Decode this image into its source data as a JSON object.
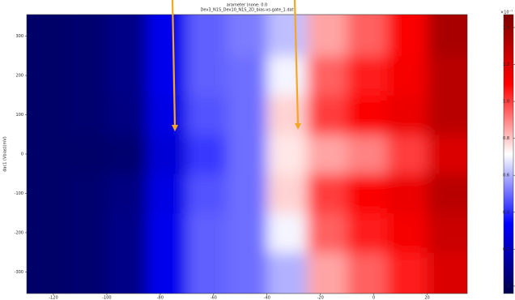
{
  "chart_data": {
    "type": "heatmap",
    "title": "arameter (none: 0.0",
    "subtitle": "Dev3_N1S_Dev10_N1S_2D_bias-vs-gate_1.dat",
    "y_label": "dac1 (Vbias)(mV)",
    "xlim": [
      -130,
      35
    ],
    "ylim": [
      -355,
      355
    ],
    "xticks": [
      -120,
      -100,
      -80,
      -60,
      -40,
      -20,
      0,
      20
    ],
    "yticks": [
      300,
      200,
      100,
      0,
      -100,
      -200,
      -300
    ],
    "x_edges": [
      -130,
      -115,
      -100,
      -85,
      -70,
      -55,
      -40,
      -25,
      -10,
      5,
      20,
      35
    ],
    "y_edges": [
      -355,
      -250,
      -150,
      -50,
      50,
      150,
      250,
      355
    ],
    "z": [
      [
        0.02,
        0.03,
        0.08,
        0.3,
        0.48,
        0.5,
        0.6,
        0.85,
        0.95,
        1.05,
        1.2
      ],
      [
        0.02,
        0.03,
        0.08,
        0.3,
        0.48,
        0.5,
        0.7,
        0.95,
        1.05,
        1.12,
        1.25
      ],
      [
        0.02,
        0.03,
        0.07,
        0.28,
        0.46,
        0.5,
        0.78,
        1.0,
        1.1,
        1.15,
        1.3
      ],
      [
        0.02,
        0.02,
        0.03,
        0.25,
        0.42,
        0.5,
        0.75,
        0.85,
        0.9,
        1.0,
        1.2
      ],
      [
        0.02,
        0.03,
        0.07,
        0.28,
        0.46,
        0.5,
        0.78,
        1.0,
        1.1,
        1.15,
        1.3
      ],
      [
        0.02,
        0.03,
        0.08,
        0.3,
        0.48,
        0.5,
        0.7,
        0.95,
        1.05,
        1.12,
        1.3
      ],
      [
        0.02,
        0.03,
        0.08,
        0.3,
        0.48,
        0.52,
        0.62,
        0.85,
        0.95,
        1.1,
        1.35
      ]
    ],
    "colormap": "seismic",
    "clim": [
      -0.04,
      1.47
    ],
    "colorbar_ticks": [
      0,
      0.2,
      0.4,
      0.6,
      0.8,
      {
        "value": 1,
        "label": "1.0"
      },
      1.2,
      1.4
    ],
    "colorbar_scale_label": "×10⁻⁷"
  }
}
